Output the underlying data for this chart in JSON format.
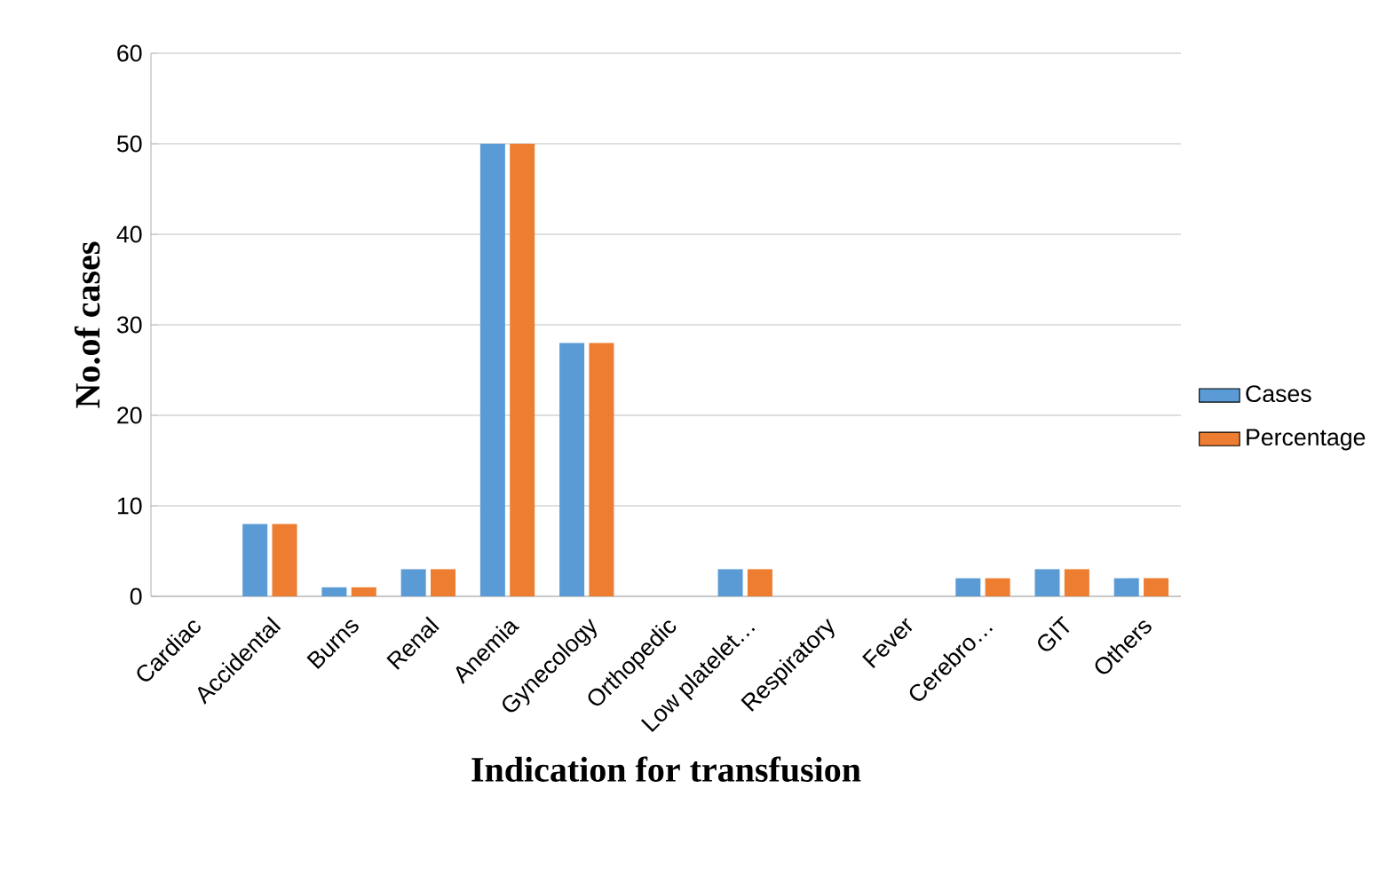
{
  "chart_data": {
    "type": "bar",
    "xlabel": "Indication for transfusion",
    "ylabel": "No.of cases",
    "categories": [
      "Cardiac",
      "Accidental",
      "Burns",
      "Renal",
      "Anemia",
      "Gynecology",
      "Orthopedic",
      "Low platelet…",
      "Respiratory",
      "Fever",
      "Cerebro…",
      "GIT",
      "Others"
    ],
    "series": [
      {
        "name": "Cases",
        "color": "#5b9bd5",
        "values": [
          0,
          8,
          1,
          3,
          50,
          28,
          0,
          3,
          0,
          0,
          2,
          3,
          2
        ]
      },
      {
        "name": "Percentage",
        "color": "#ed7d31",
        "values": [
          0,
          8,
          1,
          3,
          50,
          28,
          0,
          3,
          0,
          0,
          2,
          3,
          2
        ]
      }
    ],
    "ylim": [
      0,
      60
    ],
    "yticks": [
      0,
      10,
      20,
      30,
      40,
      50,
      60
    ],
    "grid": "y",
    "legend": "right"
  }
}
